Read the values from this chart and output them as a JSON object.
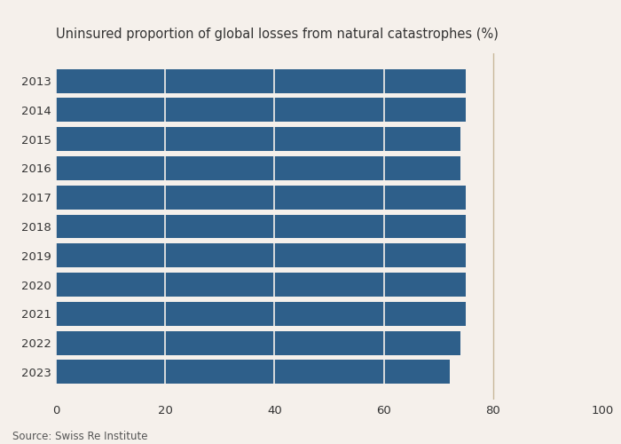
{
  "title": "Uninsured proportion of global losses from natural catastrophes (%)",
  "years": [
    "2013",
    "2014",
    "2015",
    "2016",
    "2017",
    "2018",
    "2019",
    "2020",
    "2021",
    "2022",
    "2023"
  ],
  "values": [
    75,
    75,
    74,
    74,
    75,
    75,
    75,
    75,
    75,
    74,
    72
  ],
  "bar_color": "#2e5f8a",
  "background_color": "#f5f0eb",
  "xlim": [
    0,
    100
  ],
  "xticks": [
    0,
    20,
    40,
    60,
    80,
    100
  ],
  "source_text": "Source: Swiss Re Institute",
  "vline_x": 80,
  "title_fontsize": 10.5,
  "tick_fontsize": 9.5,
  "source_fontsize": 8.5,
  "bar_height": 0.82,
  "grid_color": "#f5f0eb",
  "vline_color": "#c8b89a"
}
